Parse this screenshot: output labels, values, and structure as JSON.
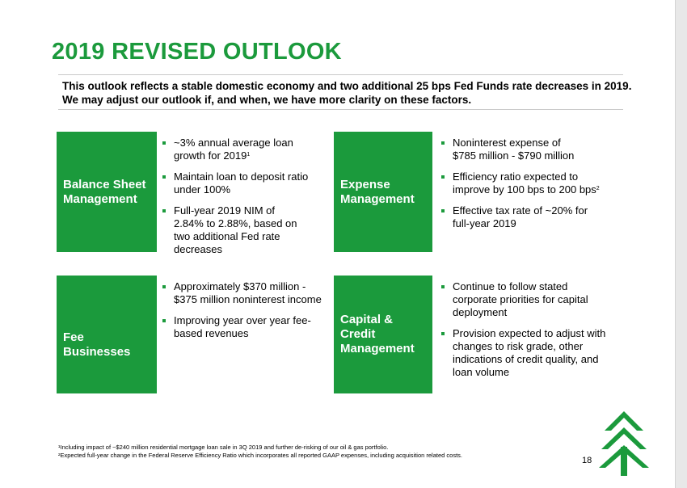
{
  "title": "2019 REVISED OUTLOOK",
  "intro": {
    "line1": "This outlook reflects a stable domestic economy and two additional 25 bps Fed Funds rate decreases in 2019.",
    "line2": "We may adjust our outlook if, and when, we have more clarity on these factors."
  },
  "sections": {
    "balance_sheet": {
      "heading": [
        "Balance Sheet",
        "Management"
      ],
      "b1": [
        "~3% annual average loan",
        "growth for 2019"
      ],
      "b1_sup": "1",
      "b2": [
        "Maintain loan to deposit ratio",
        "under 100%"
      ],
      "b3": [
        "Full-year 2019 NIM of",
        "2.84% to 2.88%, based on",
        "two additional Fed rate",
        "decreases"
      ]
    },
    "expense": {
      "heading": [
        "Expense",
        "Management"
      ],
      "b1": [
        "Noninterest expense of",
        "$785 million - $790 million"
      ],
      "b2": [
        "Efficiency ratio expected to",
        "improve by 100 bps to 200 bps"
      ],
      "b2_sup": "2",
      "b3": [
        "Effective tax rate of ~20% for",
        "full-year 2019"
      ]
    },
    "fee": {
      "heading": [
        "Fee",
        "Businesses"
      ],
      "b1": [
        "Approximately $370 million -",
        "$375 million noninterest income"
      ],
      "b2": [
        "Improving year over year fee-",
        "based revenues"
      ]
    },
    "capital": {
      "heading": [
        "Capital &",
        "Credit",
        "Management"
      ],
      "b1": [
        "Continue to follow stated",
        "corporate priorities for capital",
        "deployment"
      ],
      "b2": [
        "Provision expected to adjust with",
        "changes to risk grade, other",
        "indications of credit quality, and",
        "loan volume"
      ]
    }
  },
  "footnotes": [
    "¹Including impact of ~$240 million residential mortgage loan sale in 3Q 2019 and further de-risking of our oil & gas portfolio.",
    "²Expected full-year change in the Federal Reserve Efficiency Ratio which incorporates all reported GAAP expenses, including acquisition related costs."
  ],
  "page_number": "18",
  "colors": {
    "brand_green": "#1b9a3c"
  },
  "logo_icon": "tree-logo-icon"
}
